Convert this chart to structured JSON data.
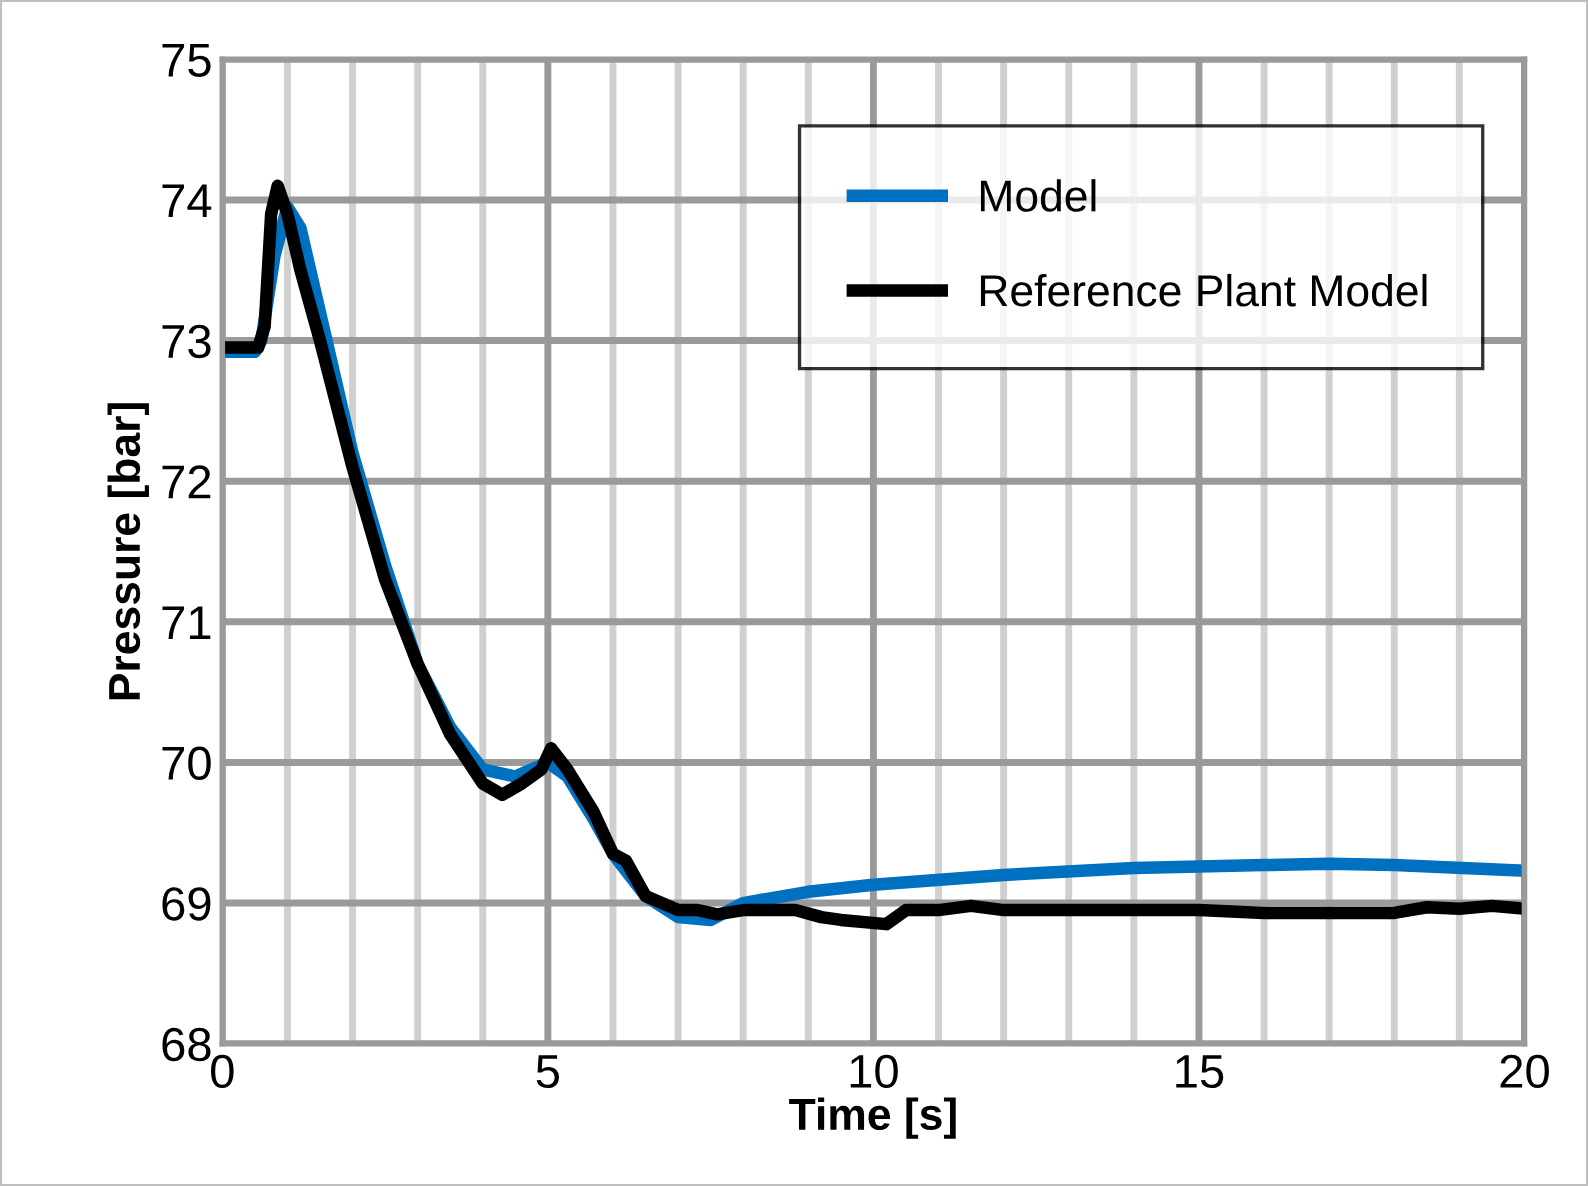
{
  "chart_data": {
    "type": "line",
    "xlabel": "Time [s]",
    "ylabel": "Pressure [bar]",
    "xlim": [
      0,
      20
    ],
    "xticks": [
      0,
      5,
      10,
      15,
      20
    ],
    "ylim": [
      68,
      75
    ],
    "yticks": [
      68,
      69,
      70,
      71,
      72,
      73,
      74,
      75
    ],
    "grid": true,
    "legend": "top right",
    "marker": "none",
    "line_style": "solid",
    "series": [
      {
        "name": "Model",
        "color": "#0070c0",
        "x": [
          0,
          0.5,
          0.6,
          0.8,
          1.0,
          1.2,
          1.5,
          2,
          2.5,
          3,
          3.5,
          4,
          4.5,
          5,
          5.3,
          5.7,
          6,
          6.5,
          7,
          7.5,
          8,
          9,
          10,
          12,
          14,
          16,
          17,
          18,
          20
        ],
        "values": [
          72.92,
          72.92,
          73.0,
          73.6,
          73.95,
          73.8,
          73.2,
          72.2,
          71.4,
          70.7,
          70.25,
          69.95,
          69.9,
          70.0,
          69.9,
          69.6,
          69.35,
          69.05,
          68.9,
          68.88,
          69.0,
          69.08,
          69.13,
          69.2,
          69.25,
          69.27,
          69.28,
          69.27,
          69.23
        ]
      },
      {
        "name": "Reference Plant Model",
        "color": "#000000",
        "x": [
          0,
          0.55,
          0.65,
          0.75,
          0.85,
          1.0,
          1.2,
          1.5,
          2,
          2.5,
          3,
          3.5,
          4,
          4.3,
          4.6,
          4.9,
          5.05,
          5.3,
          5.7,
          6,
          6.2,
          6.5,
          7,
          7.3,
          7.6,
          8,
          8.8,
          9.2,
          9.5,
          10.2,
          10.5,
          11,
          11.5,
          12,
          13,
          14,
          15,
          16,
          17,
          18,
          18.5,
          19,
          19.5,
          20
        ],
        "values": [
          72.95,
          72.95,
          73.1,
          73.9,
          74.1,
          73.9,
          73.5,
          73.0,
          72.1,
          71.3,
          70.7,
          70.2,
          69.85,
          69.77,
          69.85,
          69.95,
          70.1,
          69.95,
          69.65,
          69.35,
          69.3,
          69.05,
          68.95,
          68.95,
          68.92,
          68.95,
          68.95,
          68.9,
          68.88,
          68.85,
          68.95,
          68.95,
          68.98,
          68.95,
          68.95,
          68.95,
          68.95,
          68.93,
          68.93,
          68.93,
          68.97,
          68.96,
          68.98,
          68.96
        ]
      }
    ]
  }
}
